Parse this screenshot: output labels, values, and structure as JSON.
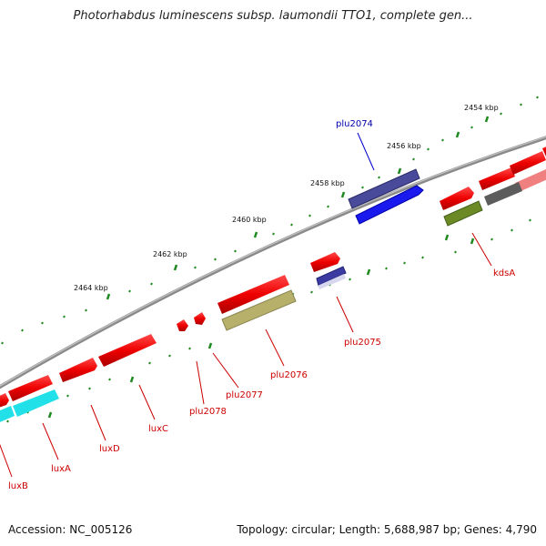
{
  "title": "Photorhabdus luminescens subsp. laumondii TTO1, complete gen...",
  "footer": {
    "accession": "Accession: NC_005126",
    "topology": "Topology: circular; Length: 5,688,987 bp; Genes: 4,790"
  },
  "colors": {
    "backbone": "#8a8a8a",
    "ticks": "#1f8a1f",
    "label_red": "#cc0000",
    "label_blue": "#0000aa"
  },
  "ticks": [
    {
      "label": "2454 kbp"
    },
    {
      "label": "2456 kbp"
    },
    {
      "label": "2458 kbp"
    },
    {
      "label": "2460 kbp"
    },
    {
      "label": "2462 kbp"
    },
    {
      "label": "2464 kbp"
    }
  ],
  "genes": [
    {
      "name": "plu2074",
      "color": "#0000aa"
    },
    {
      "name": "kdsA",
      "color": "#cc0000"
    },
    {
      "name": "plu2075",
      "color": "#cc0000"
    },
    {
      "name": "plu2076",
      "color": "#cc0000"
    },
    {
      "name": "plu2077",
      "color": "#cc0000"
    },
    {
      "name": "plu2078",
      "color": "#cc0000"
    },
    {
      "name": "luxC",
      "color": "#cc0000"
    },
    {
      "name": "luxD",
      "color": "#cc0000"
    },
    {
      "name": "luxA",
      "color": "#cc0000"
    },
    {
      "name": "luxB",
      "color": "#cc0000"
    }
  ]
}
